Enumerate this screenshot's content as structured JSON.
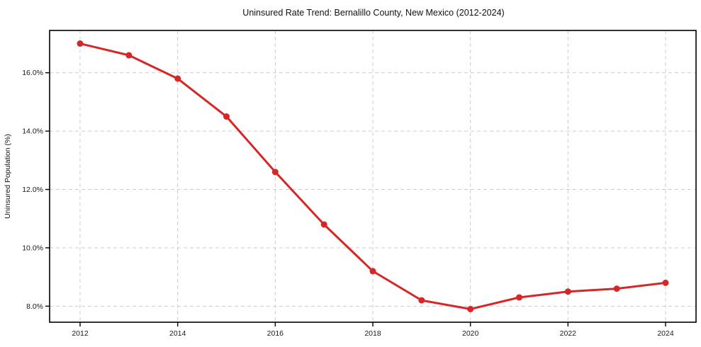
{
  "chart_data": {
    "type": "line",
    "title": "Uninsured Rate Trend: Bernalillo County, New Mexico (2012-2024)",
    "xlabel": "",
    "ylabel": "Uninsured Population (%)",
    "categories": [
      2012,
      2013,
      2014,
      2015,
      2016,
      2017,
      2018,
      2019,
      2020,
      2021,
      2022,
      2023,
      2024
    ],
    "series": [
      {
        "name": "Uninsured Population (%)",
        "values": [
          17.0,
          16.6,
          15.8,
          14.5,
          12.6,
          10.8,
          9.2,
          8.2,
          7.9,
          8.3,
          8.5,
          8.6,
          8.8
        ]
      }
    ],
    "ylim": [
      7.45,
      17.45
    ],
    "yticks": [
      8,
      10,
      12,
      14,
      16
    ],
    "ytick_labels": [
      "8.0%",
      "10.0%",
      "12.0%",
      "14.0%",
      "16.0%"
    ],
    "xticks": [
      2012,
      2014,
      2016,
      2018,
      2020,
      2022,
      2024
    ],
    "xtick_labels": [
      "2012",
      "2014",
      "2016",
      "2018",
      "2020",
      "2022",
      "2024"
    ],
    "grid": true,
    "legend": "none",
    "marker": "o",
    "line_width": 3,
    "marker_radius": 4.5,
    "colors": {
      "line": "#d62728",
      "marker": "#d62728",
      "grid": "#cccccc",
      "axis": "#000000",
      "text": "#1a1a1a"
    }
  }
}
